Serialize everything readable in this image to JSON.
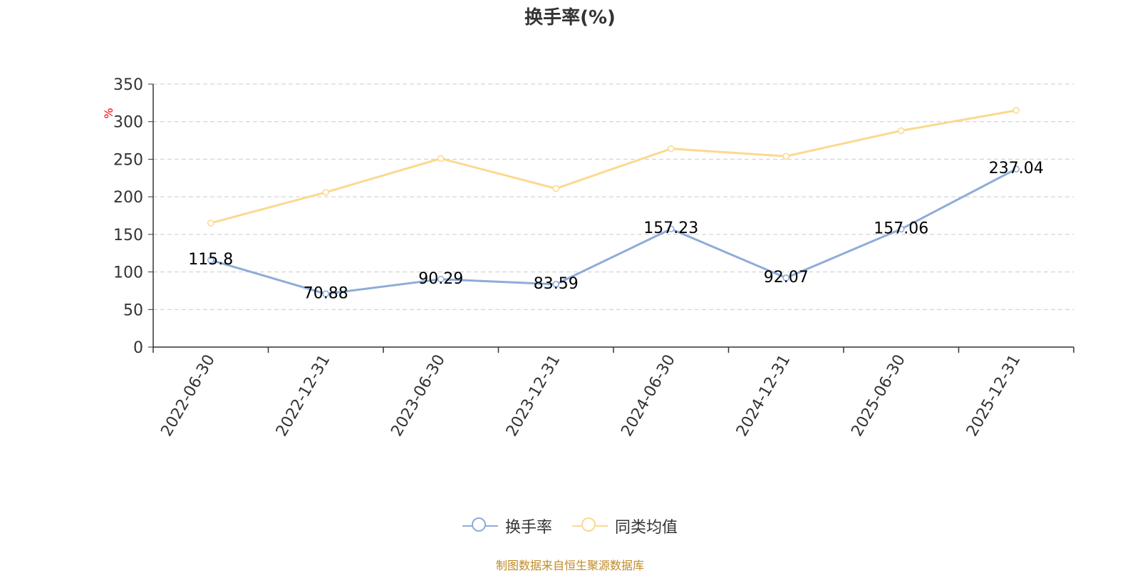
{
  "title": "换手率(%)",
  "source_note": "制图数据来自恒生聚源数据库",
  "colors": {
    "turnover": "#8eacd8",
    "peer_avg": "#fbd98e",
    "unit_label": "#ff0000",
    "source_note": "#c28a28",
    "grid": "#cccccc",
    "axis": "#333333"
  },
  "chart_data": {
    "type": "line",
    "title": "换手率(%)",
    "ylabel": "%",
    "ylim": [
      0,
      350
    ],
    "yticks": [
      0,
      50,
      100,
      150,
      200,
      250,
      300,
      350
    ],
    "grid": true,
    "legend_position": "bottom",
    "categories": [
      "2022-06-30",
      "2022-12-31",
      "2023-06-30",
      "2023-12-31",
      "2024-06-30",
      "2024-12-31",
      "2025-06-30",
      "2025-12-31"
    ],
    "series": [
      {
        "name": "换手率",
        "color": "#8eacd8",
        "data_labels": true,
        "values": [
          115.8,
          70.88,
          90.29,
          83.59,
          157.23,
          92.07,
          157.06,
          237.04
        ]
      },
      {
        "name": "同类均值",
        "color": "#fbd98e",
        "data_labels": false,
        "values": [
          165,
          206,
          251,
          211,
          264,
          254,
          288,
          315
        ]
      }
    ]
  }
}
